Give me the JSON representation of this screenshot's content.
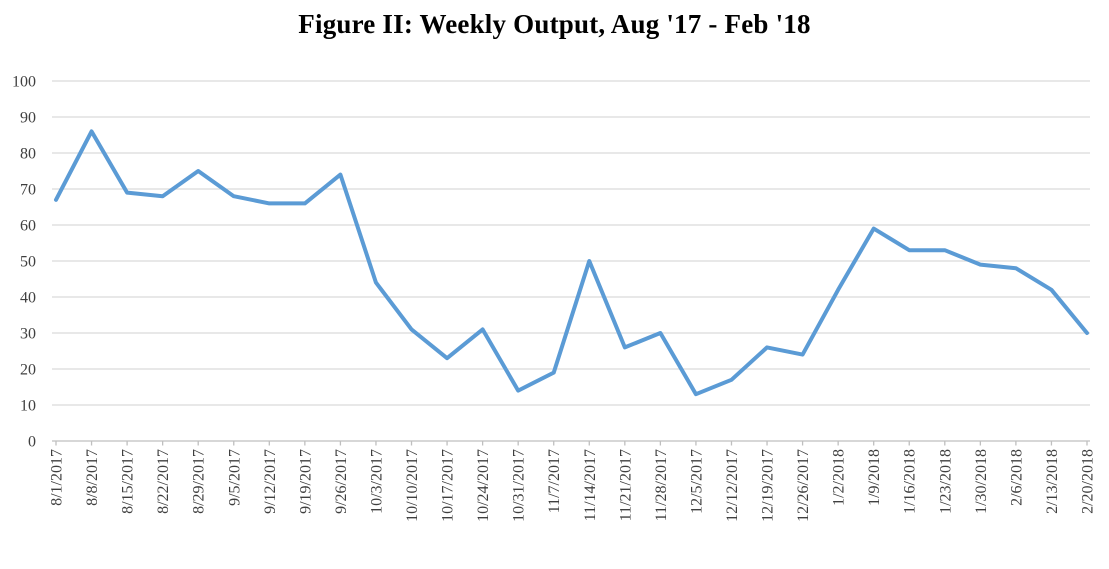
{
  "chart_data": {
    "type": "line",
    "title": "Figure II: Weekly Output, Aug '17 - Feb '18",
    "categories": [
      "8/1/2017",
      "8/8/2017",
      "8/15/2017",
      "8/22/2017",
      "8/29/2017",
      "9/5/2017",
      "9/12/2017",
      "9/19/2017",
      "9/26/2017",
      "10/3/2017",
      "10/10/2017",
      "10/17/2017",
      "10/24/2017",
      "10/31/2017",
      "11/7/2017",
      "11/14/2017",
      "11/21/2017",
      "11/28/2017",
      "12/5/2017",
      "12/12/2017",
      "12/19/2017",
      "12/26/2017",
      "1/2/2018",
      "1/9/2018",
      "1/16/2018",
      "1/23/2018",
      "1/30/2018",
      "2/6/2018",
      "2/13/2018",
      "2/20/2018"
    ],
    "values": [
      67,
      86,
      69,
      68,
      75,
      68,
      66,
      66,
      74,
      44,
      31,
      23,
      31,
      14,
      19,
      50,
      26,
      30,
      13,
      17,
      26,
      24,
      42,
      59,
      53,
      53,
      49,
      48,
      42,
      30
    ],
    "yticks": [
      0,
      10,
      20,
      30,
      40,
      50,
      60,
      70,
      80,
      90,
      100
    ],
    "ylim": [
      0,
      100
    ],
    "xlabel": "",
    "ylabel": "",
    "grid": true,
    "legend": "none",
    "colors": {
      "line": "#5B9BD5",
      "gridline": "#D9D9D9",
      "axis": "#BFBFBF",
      "tick_label": "#3F3F3F",
      "title": "#000000"
    }
  }
}
